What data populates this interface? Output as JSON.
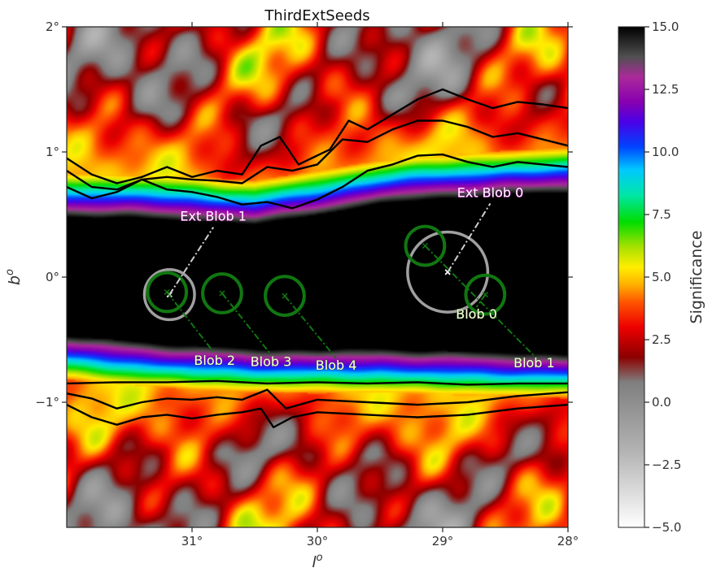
{
  "chart_data": {
    "type": "heatmap",
    "title": "ThirdExtSeeds",
    "xlabel": "l",
    "xlabel_sup": "o",
    "ylabel": "b",
    "ylabel_sup": "o",
    "xlim": [
      32.0,
      28.0
    ],
    "ylim": [
      -2.0,
      2.0
    ],
    "x_ticks": [
      {
        "value": 31,
        "label": "31°"
      },
      {
        "value": 30,
        "label": "30°"
      },
      {
        "value": 29,
        "label": "29°"
      },
      {
        "value": 28,
        "label": "28°"
      }
    ],
    "y_ticks": [
      {
        "value": 2,
        "label": "2°"
      },
      {
        "value": 1,
        "label": "1°"
      },
      {
        "value": 0,
        "label": "0°"
      },
      {
        "value": -1,
        "label": "−1°"
      }
    ],
    "colorbar": {
      "label": "Significance",
      "range": [
        -5.0,
        15.0
      ],
      "ticks": [
        "15.0",
        "12.5",
        "10.0",
        "7.5",
        "5.0",
        "2.5",
        "0.0",
        "−2.5",
        "−5.0"
      ],
      "tick_values": [
        15.0,
        12.5,
        10.0,
        7.5,
        5.0,
        2.5,
        0.0,
        -2.5,
        -5.0
      ],
      "colormap": [
        {
          "v": -5.0,
          "c": "#ffffff"
        },
        {
          "v": -2.0,
          "c": "#b4b4b4"
        },
        {
          "v": 0.8,
          "c": "#7f7f7f"
        },
        {
          "v": 1.8,
          "c": "#8c0000"
        },
        {
          "v": 3.0,
          "c": "#ee0000"
        },
        {
          "v": 4.0,
          "c": "#ff5500"
        },
        {
          "v": 4.7,
          "c": "#ffb000"
        },
        {
          "v": 5.4,
          "c": "#ffee00"
        },
        {
          "v": 6.2,
          "c": "#a8e000"
        },
        {
          "v": 7.2,
          "c": "#00dd00"
        },
        {
          "v": 8.3,
          "c": "#00e6aa"
        },
        {
          "v": 9.3,
          "c": "#00c8ff"
        },
        {
          "v": 10.2,
          "c": "#0044ff"
        },
        {
          "v": 11.2,
          "c": "#4a00e6"
        },
        {
          "v": 12.0,
          "c": "#8800b0"
        },
        {
          "v": 13.0,
          "c": "#aa2a9a"
        },
        {
          "v": 13.8,
          "c": "#505050"
        },
        {
          "v": 15.0,
          "c": "#000000"
        }
      ]
    },
    "significance_field": {
      "core_upper_b": [
        [
          32.0,
          0.48
        ],
        [
          31.0,
          0.45
        ],
        [
          30.5,
          0.42
        ],
        [
          30.0,
          0.5
        ],
        [
          29.5,
          0.58
        ],
        [
          29.0,
          0.62
        ],
        [
          28.5,
          0.66
        ],
        [
          28.0,
          0.68
        ]
      ],
      "core_lower_b": [
        [
          32.0,
          -0.47
        ],
        [
          31.0,
          -0.55
        ],
        [
          30.5,
          -0.57
        ],
        [
          30.0,
          -0.58
        ],
        [
          29.5,
          -0.57
        ],
        [
          29.0,
          -0.59
        ],
        [
          28.5,
          -0.6
        ],
        [
          28.0,
          -0.62
        ]
      ],
      "edge_width_deg": 0.35
    },
    "contours": {
      "color": "#000000",
      "upper": [
        [
          [
            32.0,
            0.95
          ],
          [
            31.8,
            0.82
          ],
          [
            31.6,
            0.75
          ],
          [
            31.4,
            0.8
          ],
          [
            31.2,
            0.88
          ],
          [
            31.0,
            0.8
          ],
          [
            30.8,
            0.85
          ],
          [
            30.6,
            0.82
          ],
          [
            30.45,
            1.05
          ],
          [
            30.3,
            1.12
          ],
          [
            30.15,
            0.9
          ],
          [
            29.9,
            1.02
          ],
          [
            29.75,
            1.25
          ],
          [
            29.6,
            1.18
          ],
          [
            29.4,
            1.3
          ],
          [
            29.2,
            1.42
          ],
          [
            29.0,
            1.5
          ],
          [
            28.8,
            1.42
          ],
          [
            28.6,
            1.35
          ],
          [
            28.4,
            1.4
          ],
          [
            28.2,
            1.38
          ],
          [
            28.0,
            1.35
          ]
        ],
        [
          [
            32.0,
            0.85
          ],
          [
            31.8,
            0.72
          ],
          [
            31.6,
            0.7
          ],
          [
            31.4,
            0.78
          ],
          [
            31.2,
            0.8
          ],
          [
            31.0,
            0.78
          ],
          [
            30.8,
            0.77
          ],
          [
            30.6,
            0.75
          ],
          [
            30.4,
            0.88
          ],
          [
            30.2,
            0.85
          ],
          [
            30.0,
            0.9
          ],
          [
            29.8,
            1.1
          ],
          [
            29.6,
            1.08
          ],
          [
            29.4,
            1.18
          ],
          [
            29.2,
            1.25
          ],
          [
            29.0,
            1.25
          ],
          [
            28.8,
            1.2
          ],
          [
            28.6,
            1.12
          ],
          [
            28.4,
            1.15
          ],
          [
            28.2,
            1.1
          ],
          [
            28.0,
            1.05
          ]
        ],
        [
          [
            32.0,
            0.72
          ],
          [
            31.8,
            0.63
          ],
          [
            31.6,
            0.68
          ],
          [
            31.4,
            0.78
          ],
          [
            31.2,
            0.7
          ],
          [
            31.0,
            0.68
          ],
          [
            30.8,
            0.64
          ],
          [
            30.6,
            0.58
          ],
          [
            30.4,
            0.6
          ],
          [
            30.2,
            0.55
          ],
          [
            30.0,
            0.62
          ],
          [
            29.8,
            0.72
          ],
          [
            29.6,
            0.85
          ],
          [
            29.4,
            0.9
          ],
          [
            29.2,
            0.97
          ],
          [
            29.0,
            0.98
          ],
          [
            28.8,
            0.92
          ],
          [
            28.6,
            0.88
          ],
          [
            28.4,
            0.92
          ],
          [
            28.2,
            0.9
          ],
          [
            28.0,
            0.88
          ]
        ]
      ],
      "lower": [
        [
          [
            32.0,
            -0.85
          ],
          [
            31.6,
            -0.84
          ],
          [
            31.2,
            -0.84
          ],
          [
            30.8,
            -0.83
          ],
          [
            30.4,
            -0.85
          ],
          [
            30.0,
            -0.84
          ],
          [
            29.6,
            -0.85
          ],
          [
            29.2,
            -0.84
          ],
          [
            28.8,
            -0.86
          ],
          [
            28.4,
            -0.85
          ],
          [
            28.0,
            -0.85
          ]
        ],
        [
          [
            32.0,
            -0.93
          ],
          [
            31.8,
            -0.97
          ],
          [
            31.6,
            -1.05
          ],
          [
            31.4,
            -1.0
          ],
          [
            31.2,
            -0.97
          ],
          [
            31.0,
            -0.98
          ],
          [
            30.8,
            -0.96
          ],
          [
            30.6,
            -0.98
          ],
          [
            30.4,
            -0.9
          ],
          [
            30.25,
            -1.05
          ],
          [
            30.0,
            -0.98
          ],
          [
            29.6,
            -1.0
          ],
          [
            29.2,
            -1.02
          ],
          [
            28.8,
            -1.0
          ],
          [
            28.4,
            -0.95
          ],
          [
            28.0,
            -0.92
          ]
        ],
        [
          [
            32.0,
            -1.02
          ],
          [
            31.8,
            -1.12
          ],
          [
            31.6,
            -1.18
          ],
          [
            31.4,
            -1.12
          ],
          [
            31.2,
            -1.1
          ],
          [
            31.0,
            -1.13
          ],
          [
            30.8,
            -1.1
          ],
          [
            30.6,
            -1.08
          ],
          [
            30.45,
            -1.05
          ],
          [
            30.35,
            -1.2
          ],
          [
            30.2,
            -1.12
          ],
          [
            30.0,
            -1.08
          ],
          [
            29.6,
            -1.1
          ],
          [
            29.2,
            -1.12
          ],
          [
            28.8,
            -1.1
          ],
          [
            28.4,
            -1.05
          ],
          [
            28.0,
            -1.02
          ]
        ]
      ]
    },
    "blobs": [
      {
        "name": "Blob 0",
        "l": 28.66,
        "b": -0.14,
        "r": 0.155
      },
      {
        "name": "Blob 1",
        "l": 29.14,
        "b": 0.25,
        "r": 0.155
      },
      {
        "name": "Blob 2",
        "l": 31.2,
        "b": -0.12,
        "r": 0.155
      },
      {
        "name": "Blob 3",
        "l": 30.76,
        "b": -0.13,
        "r": 0.155
      },
      {
        "name": "Blob 4",
        "l": 30.26,
        "b": -0.15,
        "r": 0.155
      }
    ],
    "ext_blobs": [
      {
        "name": "Ext Blob 0",
        "l": 28.96,
        "b": 0.04,
        "r": 0.32
      },
      {
        "name": "Ext Blob 1",
        "l": 31.18,
        "b": -0.14,
        "r": 0.2
      }
    ],
    "blob_color": "#117711",
    "ext_blob_color": "#a0a0a0",
    "label_blob_color": "#ffffdd",
    "label_ext_color": "#ffffff",
    "labels": [
      {
        "text": "Blob 0",
        "l": 28.73,
        "b": -0.33,
        "target_l": 28.66,
        "target_b": -0.14,
        "kind": "blob"
      },
      {
        "text": "Blob 1",
        "l": 28.27,
        "b": -0.72,
        "target_l": 29.14,
        "target_b": 0.25,
        "kind": "blob"
      },
      {
        "text": "Blob 2",
        "l": 30.82,
        "b": -0.7,
        "target_l": 31.2,
        "target_b": -0.12,
        "kind": "blob"
      },
      {
        "text": "Blob 3",
        "l": 30.37,
        "b": -0.71,
        "target_l": 30.76,
        "target_b": -0.13,
        "kind": "blob"
      },
      {
        "text": "Blob 4",
        "l": 29.85,
        "b": -0.74,
        "target_l": 30.26,
        "target_b": -0.15,
        "kind": "blob"
      },
      {
        "text": "Ext Blob 0",
        "l": 28.62,
        "b": 0.64,
        "target_l": 28.96,
        "target_b": 0.04,
        "kind": "ext"
      },
      {
        "text": "Ext Blob 1",
        "l": 30.83,
        "b": 0.45,
        "target_l": 31.18,
        "target_b": -0.14,
        "kind": "ext"
      }
    ]
  }
}
